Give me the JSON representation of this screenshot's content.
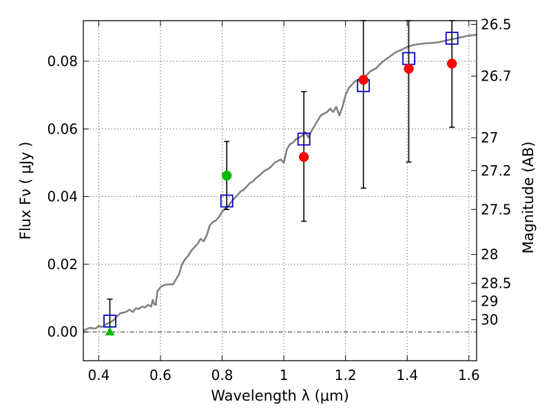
{
  "chart_data": {
    "type": "scatter",
    "xlabel": "Wavelength  λ (μm)",
    "ylabel": "Flux  Fν  ( μJy )",
    "y2label": "Magnitude (AB)",
    "xlim": [
      0.35,
      1.625
    ],
    "ylim": [
      -0.0085,
      0.092
    ],
    "grid": true,
    "x_ticks": [
      0.4,
      0.6,
      0.8,
      1.0,
      1.2,
      1.4,
      1.6
    ],
    "x_tick_labels": [
      "0.4",
      "0.6",
      "0.8",
      "1",
      "1.2",
      "1.4",
      "1.6"
    ],
    "y_ticks": [
      0.0,
      0.02,
      0.04,
      0.06,
      0.08
    ],
    "y_tick_labels": [
      "0.00",
      "0.02",
      "0.04",
      "0.06",
      "0.08"
    ],
    "y2_ticks": [
      {
        "flux": 0.0909,
        "label": "26.5"
      },
      {
        "flux": 0.0756,
        "label": "26.7"
      },
      {
        "flux": 0.0574,
        "label": "27"
      },
      {
        "flux": 0.0477,
        "label": "27.2"
      },
      {
        "flux": 0.0362,
        "label": "27.5"
      },
      {
        "flux": 0.0229,
        "label": "28"
      },
      {
        "flux": 0.0144,
        "label": "28.5"
      },
      {
        "flux": 0.0091,
        "label": "29"
      },
      {
        "flux": 0.0036,
        "label": "30"
      }
    ],
    "zero_line": 0.0,
    "colors": {
      "sed": "#808080",
      "model_box": "#0000cc",
      "red": "#ff0000",
      "green": "#00bb00",
      "errorbar": "#000000",
      "grid": "#666666"
    },
    "series": [
      {
        "kind": "line",
        "points": [
          [
            0.35,
            0.0004
          ],
          [
            0.37,
            0.0012
          ],
          [
            0.39,
            0.001
          ],
          [
            0.4,
            0.0018
          ],
          [
            0.41,
            0.0014
          ],
          [
            0.42,
            0.0021
          ],
          [
            0.43,
            0.0025
          ],
          [
            0.44,
            0.003
          ],
          [
            0.45,
            0.0036
          ],
          [
            0.46,
            0.0047
          ],
          [
            0.47,
            0.0055
          ],
          [
            0.48,
            0.0057
          ],
          [
            0.49,
            0.006
          ],
          [
            0.5,
            0.0066
          ],
          [
            0.51,
            0.0059
          ],
          [
            0.52,
            0.007
          ],
          [
            0.53,
            0.0068
          ],
          [
            0.54,
            0.0075
          ],
          [
            0.55,
            0.0072
          ],
          [
            0.56,
            0.008
          ],
          [
            0.57,
            0.0075
          ],
          [
            0.575,
            0.0095
          ],
          [
            0.58,
            0.0082
          ],
          [
            0.585,
            0.008
          ],
          [
            0.59,
            0.012
          ],
          [
            0.6,
            0.0132
          ],
          [
            0.61,
            0.0138
          ],
          [
            0.62,
            0.014
          ],
          [
            0.63,
            0.0141
          ],
          [
            0.64,
            0.014
          ],
          [
            0.65,
            0.0155
          ],
          [
            0.66,
            0.017
          ],
          [
            0.67,
            0.02
          ],
          [
            0.68,
            0.0215
          ],
          [
            0.69,
            0.0225
          ],
          [
            0.7,
            0.024
          ],
          [
            0.71,
            0.025
          ],
          [
            0.72,
            0.026
          ],
          [
            0.73,
            0.0275
          ],
          [
            0.74,
            0.0268
          ],
          [
            0.75,
            0.0285
          ],
          [
            0.76,
            0.0315
          ],
          [
            0.77,
            0.0325
          ],
          [
            0.78,
            0.033
          ],
          [
            0.79,
            0.034
          ],
          [
            0.8,
            0.0355
          ],
          [
            0.81,
            0.0365
          ],
          [
            0.82,
            0.0372
          ],
          [
            0.83,
            0.0385
          ],
          [
            0.84,
            0.0395
          ],
          [
            0.85,
            0.0405
          ],
          [
            0.86,
            0.0415
          ],
          [
            0.87,
            0.042
          ],
          [
            0.88,
            0.043
          ],
          [
            0.89,
            0.044
          ],
          [
            0.9,
            0.0445
          ],
          [
            0.91,
            0.0455
          ],
          [
            0.92,
            0.0462
          ],
          [
            0.93,
            0.047
          ],
          [
            0.94,
            0.0478
          ],
          [
            0.95,
            0.0482
          ],
          [
            0.96,
            0.049
          ],
          [
            0.97,
            0.05
          ],
          [
            0.98,
            0.0505
          ],
          [
            0.99,
            0.051
          ],
          [
            1.0,
            0.05
          ],
          [
            1.01,
            0.054
          ],
          [
            1.02,
            0.0555
          ],
          [
            1.03,
            0.056
          ],
          [
            1.04,
            0.057
          ],
          [
            1.05,
            0.0575
          ],
          [
            1.06,
            0.058
          ],
          [
            1.07,
            0.059
          ],
          [
            1.08,
            0.0575
          ],
          [
            1.09,
            0.0595
          ],
          [
            1.1,
            0.061
          ],
          [
            1.11,
            0.0625
          ],
          [
            1.12,
            0.064
          ],
          [
            1.13,
            0.0645
          ],
          [
            1.14,
            0.065
          ],
          [
            1.15,
            0.066
          ],
          [
            1.16,
            0.065
          ],
          [
            1.17,
            0.0665
          ],
          [
            1.18,
            0.064
          ],
          [
            1.19,
            0.0665
          ],
          [
            1.2,
            0.07
          ],
          [
            1.21,
            0.072
          ],
          [
            1.22,
            0.073
          ],
          [
            1.23,
            0.074
          ],
          [
            1.24,
            0.0745
          ],
          [
            1.25,
            0.075
          ],
          [
            1.26,
            0.0755
          ],
          [
            1.27,
            0.076
          ],
          [
            1.28,
            0.077
          ],
          [
            1.29,
            0.0775
          ],
          [
            1.3,
            0.078
          ],
          [
            1.31,
            0.079
          ],
          [
            1.32,
            0.0798
          ],
          [
            1.33,
            0.0805
          ],
          [
            1.34,
            0.0812
          ],
          [
            1.35,
            0.0818
          ],
          [
            1.36,
            0.0825
          ],
          [
            1.37,
            0.083
          ],
          [
            1.38,
            0.0833
          ],
          [
            1.39,
            0.0838
          ],
          [
            1.4,
            0.0842
          ],
          [
            1.42,
            0.0848
          ],
          [
            1.44,
            0.0851
          ],
          [
            1.46,
            0.0853
          ],
          [
            1.48,
            0.0854
          ],
          [
            1.5,
            0.0856
          ],
          [
            1.52,
            0.086
          ],
          [
            1.54,
            0.0864
          ],
          [
            1.56,
            0.0868
          ],
          [
            1.58,
            0.0872
          ],
          [
            1.6,
            0.0876
          ],
          [
            1.625,
            0.0878
          ]
        ]
      },
      {
        "kind": "model-squares",
        "x": [
          0.436,
          0.815,
          1.065,
          1.258,
          1.405,
          1.545
        ],
        "y": [
          0.0032,
          0.0387,
          0.057,
          0.0728,
          0.0808,
          0.0868
        ]
      },
      {
        "kind": "red-circles",
        "x": [
          1.065,
          1.258,
          1.405,
          1.545
        ],
        "y": [
          0.0517,
          0.0745,
          0.0778,
          0.0793
        ]
      },
      {
        "kind": "green-circle",
        "x": [
          0.815
        ],
        "y": [
          0.0462
        ]
      },
      {
        "kind": "green-triangle",
        "x": [
          0.436
        ],
        "y": [
          0.0
        ]
      },
      {
        "kind": "errorbars",
        "bars": [
          {
            "x": 0.436,
            "low": -0.0005,
            "high": 0.0097
          },
          {
            "x": 0.815,
            "low": 0.0362,
            "high": 0.0563
          },
          {
            "x": 1.065,
            "low": 0.0327,
            "high": 0.071
          },
          {
            "x": 1.258,
            "low": 0.0425,
            "high": 0.092
          },
          {
            "x": 1.405,
            "low": 0.0502,
            "high": 0.092
          },
          {
            "x": 1.545,
            "low": 0.0605,
            "high": 0.092
          }
        ]
      }
    ]
  }
}
